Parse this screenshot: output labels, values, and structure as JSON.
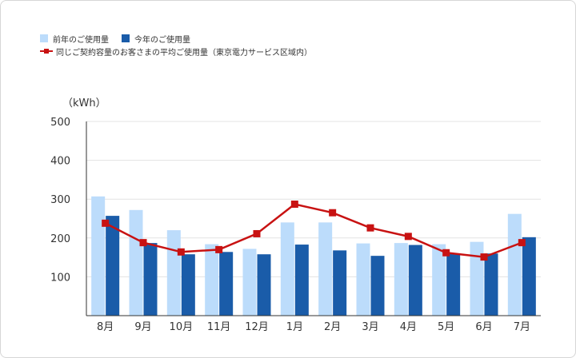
{
  "chart_data": {
    "type": "bar",
    "unit_label": "（kWh）",
    "categories": [
      "8月",
      "9月",
      "10月",
      "11月",
      "12月",
      "1月",
      "2月",
      "3月",
      "4月",
      "5月",
      "6月",
      "7月"
    ],
    "ylim": [
      0,
      500
    ],
    "yticks": [
      100,
      200,
      300,
      400,
      500
    ],
    "grid": true,
    "legend_position": "top-left",
    "series": [
      {
        "name": "前年のご使用量",
        "kind": "bar",
        "color": "#bcdcfb",
        "values": [
          307,
          272,
          220,
          184,
          172,
          240,
          240,
          186,
          187,
          184,
          190,
          262
        ]
      },
      {
        "name": "今年のご使用量",
        "kind": "bar",
        "color": "#1a5ca9",
        "values": [
          257,
          187,
          158,
          164,
          158,
          183,
          168,
          154,
          182,
          160,
          160,
          202
        ]
      },
      {
        "name": "同じご契約容量のお客さまの平均ご使用量（東京電力サービス区域内）",
        "kind": "line",
        "color": "#c81212",
        "values": [
          238,
          188,
          164,
          170,
          211,
          287,
          265,
          226,
          204,
          162,
          151,
          188
        ]
      }
    ]
  }
}
